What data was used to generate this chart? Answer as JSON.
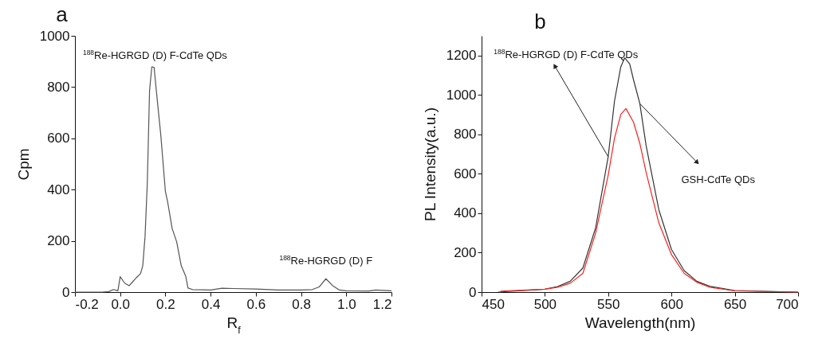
{
  "chart_data": [
    {
      "type": "line",
      "title": "a",
      "xlabel": "R$_{f}$",
      "ylabel": "Cpm",
      "xlim": [
        -0.2,
        1.2
      ],
      "ylim": [
        0,
        1000
      ],
      "xticks": [
        -0.2,
        {
          "value": 0,
          "label": "0.0"
        },
        0.2,
        0.4,
        0.6,
        0.8,
        {
          "value": 1,
          "label": "1.0"
        },
        1.2
      ],
      "yticks": [
        0,
        200,
        400,
        600,
        800,
        1000
      ],
      "series": [
        {
          "color": "#555555",
          "x": [
            -0.2,
            -0.08,
            -0.05,
            -0.03,
            -0.01,
            0,
            0.02,
            0.04,
            0.05,
            0.07,
            0.09,
            0.1,
            0.11,
            0.12,
            0.13,
            0.14,
            0.15,
            0.16,
            0.18,
            0.2,
            0.21,
            0.23,
            0.25,
            0.27,
            0.29,
            0.3,
            0.32,
            0.4,
            0.45,
            0.5,
            0.6,
            0.7,
            0.8,
            0.85,
            0.88,
            0.91,
            0.94,
            0.97,
            1.0,
            1.1,
            1.13,
            1.2
          ],
          "values": [
            0,
            0,
            2,
            10,
            5,
            60,
            35,
            25,
            35,
            55,
            72,
            103,
            217,
            424,
            786,
            879,
            877,
            786,
            610,
            393,
            352,
            248,
            196,
            103,
            62,
            16,
            10,
            8,
            15,
            14,
            12,
            8,
            8,
            10,
            20,
            52,
            25,
            8,
            5,
            4,
            8,
            5
          ]
        }
      ],
      "annotations": [
        {
          "text": "$^{188}$Re-HGRGD (D) F-CdTe QDs",
          "x": 0.14,
          "y": 879
        },
        {
          "text": "$^{188}$Re-HGRGD (D) F",
          "x": 0.91,
          "y": 52
        }
      ],
      "grid": false,
      "line_style": "solid",
      "marker": "none"
    },
    {
      "type": "line",
      "title": "b",
      "xlabel": "Wavelength(nm)",
      "ylabel": "PL Intensity(a.u.)",
      "xlim": [
        450,
        700
      ],
      "ylim": [
        0,
        1300
      ],
      "xticks": [
        450,
        500,
        550,
        600,
        650,
        700
      ],
      "yticks": [
        0,
        200,
        400,
        600,
        800,
        1000,
        1200
      ],
      "series": [
        {
          "color": "#333333",
          "x": [
            463,
            500,
            510,
            520,
            530,
            540,
            550,
            555,
            560,
            563,
            567,
            570,
            575,
            580,
            590,
            600,
            610,
            620,
            630,
            650,
            700
          ],
          "values": [
            0,
            15,
            28,
            55,
            122,
            324,
            687,
            970,
            1144,
            1188,
            1157,
            1077,
            956,
            741,
            418,
            216,
            109,
            55,
            30,
            8,
            0
          ]
        },
        {
          "color": "#ff2020",
          "x": [
            465,
            500,
            510,
            520,
            530,
            540,
            550,
            555,
            560,
            564,
            570,
            575,
            580,
            590,
            600,
            610,
            620,
            630,
            650,
            700
          ],
          "values": [
            5,
            15,
            25,
            45,
            95,
            297,
            593,
            781,
            902,
            931,
            862,
            754,
            606,
            351,
            190,
            95,
            50,
            25,
            6,
            0
          ]
        }
      ],
      "annotations": [
        {
          "text": "$^{188}$Re-HGRGD (D) F-CdTe QDs",
          "x": 550,
          "y": 687
        },
        {
          "text": "GSH-CdTe QDs",
          "x": 575,
          "y": 956
        }
      ],
      "grid": false,
      "line_style": "solid",
      "marker": "none"
    }
  ]
}
